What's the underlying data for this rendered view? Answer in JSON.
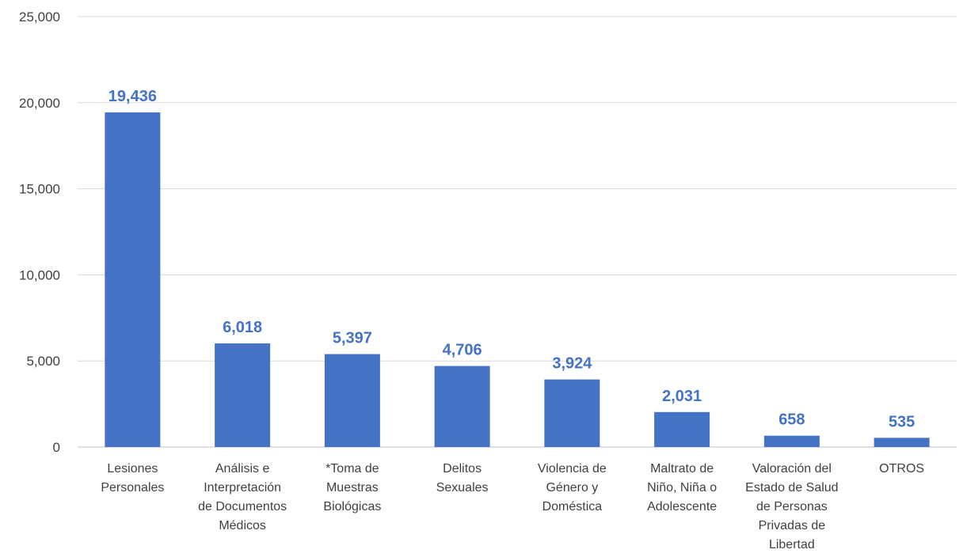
{
  "chart_data": {
    "type": "bar",
    "title": "",
    "xlabel": "",
    "ylabel": "",
    "ylim": [
      0,
      25000
    ],
    "yticks": [
      0,
      5000,
      10000,
      15000,
      20000,
      25000
    ],
    "ytick_labels": [
      "0",
      "5,000",
      "10,000",
      "15,000",
      "20,000",
      "25,000"
    ],
    "grid": true,
    "legend": "none",
    "bar_color": "#4472C4",
    "label_color": "#4472C4",
    "categories": [
      [
        "Lesiones",
        "Personales"
      ],
      [
        "Análisis e",
        "Interpretación",
        "de Documentos",
        "Médicos"
      ],
      [
        "*Toma de",
        "Muestras",
        "Biológicas"
      ],
      [
        "Delitos",
        "Sexuales"
      ],
      [
        "Violencia de",
        "Género y",
        "Doméstica"
      ],
      [
        "Maltrato de",
        "Niño, Niña o",
        "Adolescente"
      ],
      [
        "Valoración del",
        "Estado de Salud",
        "de Personas",
        "Privadas de",
        "Libertad"
      ],
      [
        "OTROS"
      ]
    ],
    "values": [
      19436,
      6018,
      5397,
      4706,
      3924,
      2031,
      658,
      535
    ],
    "value_labels": [
      "19,436",
      "6,018",
      "5,397",
      "4,706",
      "3,924",
      "2,031",
      "658",
      "535"
    ]
  }
}
